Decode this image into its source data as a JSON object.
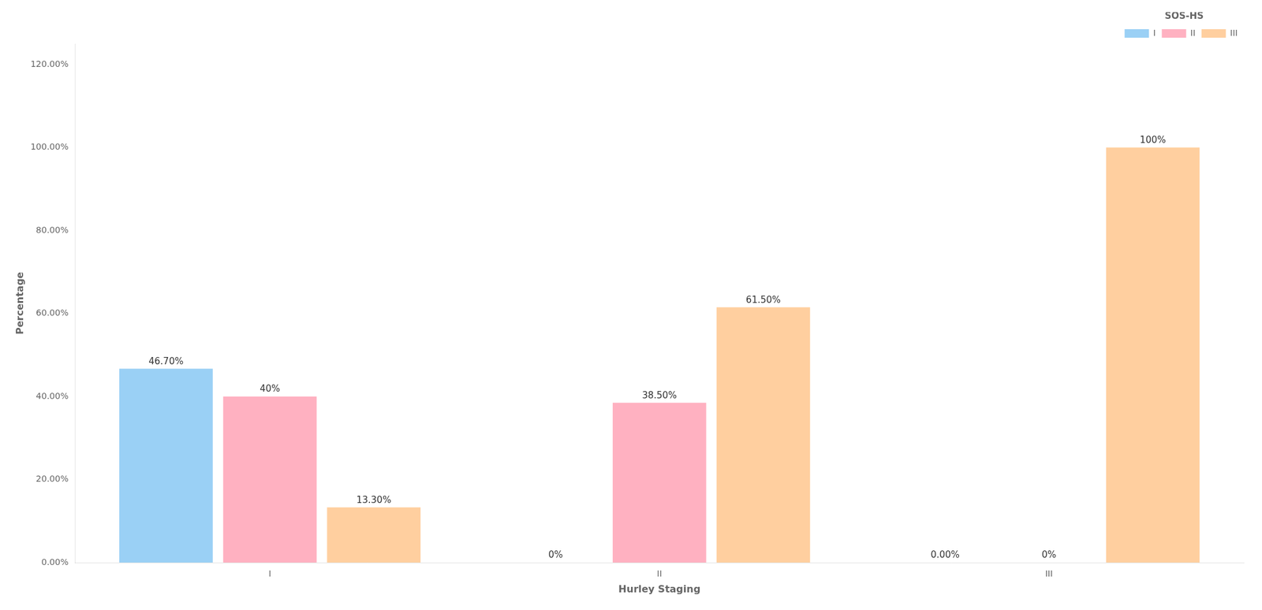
{
  "chart_data": {
    "type": "bar",
    "categories": [
      "I",
      "II",
      "III"
    ],
    "series": [
      {
        "name": "I",
        "values": [
          46.7,
          0.0,
          0.0
        ],
        "value_labels": [
          "46.70%",
          "0%",
          "0.00%"
        ]
      },
      {
        "name": "II",
        "values": [
          40.0,
          38.5,
          0.0
        ],
        "value_labels": [
          "40%",
          "38.50%",
          "0%"
        ]
      },
      {
        "name": "III",
        "values": [
          13.3,
          61.5,
          100.0
        ],
        "value_labels": [
          "13.30%",
          "61.50%",
          "100%"
        ]
      }
    ],
    "xlabel": "Hurley Staging",
    "ylabel": "Percentage",
    "legend_title": "SOS-HS",
    "legend": "upper right",
    "ylim": [
      0,
      125
    ],
    "yticks": [
      {
        "value": 0,
        "label": "0.00%"
      },
      {
        "value": 20,
        "label": "20.00%"
      },
      {
        "value": 40,
        "label": "40.00%"
      },
      {
        "value": 60,
        "label": "60.00%"
      },
      {
        "value": 80,
        "label": "80.00%"
      },
      {
        "value": 100,
        "label": "100.00%"
      },
      {
        "value": 120,
        "label": "120.00%"
      }
    ],
    "grid": false,
    "data_labels": true
  }
}
